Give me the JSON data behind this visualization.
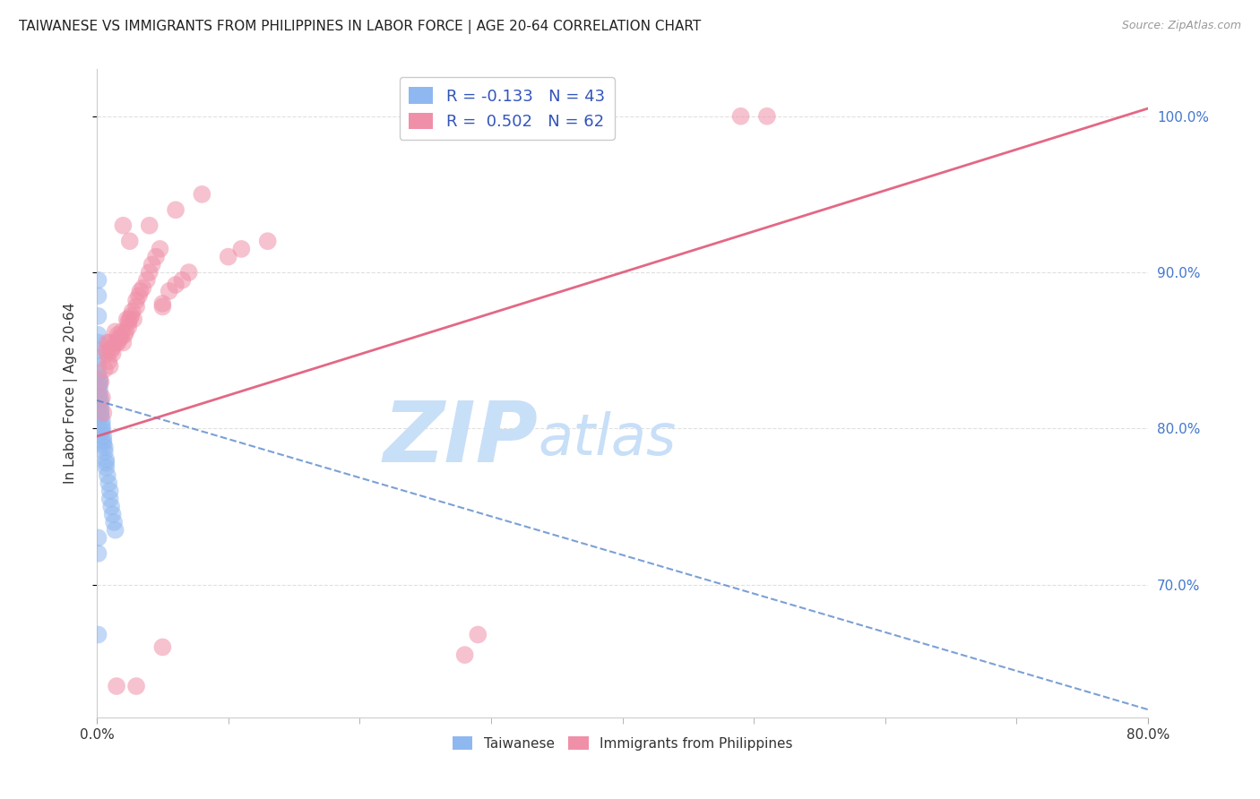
{
  "title": "TAIWANESE VS IMMIGRANTS FROM PHILIPPINES IN LABOR FORCE | AGE 20-64 CORRELATION CHART",
  "source": "Source: ZipAtlas.com",
  "ylabel": "In Labor Force | Age 20-64",
  "ytick_labels": [
    "70.0%",
    "80.0%",
    "90.0%",
    "100.0%"
  ],
  "ytick_values": [
    0.7,
    0.8,
    0.9,
    1.0
  ],
  "xlim": [
    0.0,
    0.8
  ],
  "ylim": [
    0.615,
    1.03
  ],
  "legend_label_blue": "R = -0.133   N = 43",
  "legend_label_pink": "R =  0.502   N = 62",
  "blue_color": "#90b8f0",
  "pink_color": "#f090a8",
  "blue_line_color": "#5080c8",
  "pink_line_color": "#e05878",
  "watermark_zip": "ZIP",
  "watermark_atlas": "atlas",
  "watermark_color_zip": "#c8dff8",
  "watermark_color_atlas": "#c8dff8",
  "background_color": "#ffffff",
  "grid_color": "#e0e0e0",
  "taiwanese_x": [
    0.001,
    0.001,
    0.001,
    0.001,
    0.001,
    0.001,
    0.001,
    0.001,
    0.001,
    0.002,
    0.002,
    0.002,
    0.002,
    0.002,
    0.002,
    0.003,
    0.003,
    0.003,
    0.003,
    0.003,
    0.004,
    0.004,
    0.004,
    0.004,
    0.005,
    0.005,
    0.005,
    0.006,
    0.006,
    0.007,
    0.007,
    0.007,
    0.008,
    0.009,
    0.01,
    0.01,
    0.011,
    0.012,
    0.013,
    0.014,
    0.001,
    0.001,
    0.001
  ],
  "taiwanese_y": [
    0.895,
    0.885,
    0.872,
    0.86,
    0.855,
    0.85,
    0.845,
    0.84,
    0.835,
    0.832,
    0.83,
    0.828,
    0.825,
    0.822,
    0.82,
    0.818,
    0.815,
    0.812,
    0.81,
    0.808,
    0.805,
    0.802,
    0.8,
    0.798,
    0.795,
    0.792,
    0.79,
    0.788,
    0.785,
    0.78,
    0.778,
    0.775,
    0.77,
    0.765,
    0.76,
    0.755,
    0.75,
    0.745,
    0.74,
    0.735,
    0.73,
    0.72,
    0.668
  ],
  "philippines_x": [
    0.003,
    0.004,
    0.005,
    0.006,
    0.007,
    0.008,
    0.008,
    0.009,
    0.01,
    0.01,
    0.011,
    0.012,
    0.012,
    0.013,
    0.014,
    0.015,
    0.016,
    0.016,
    0.017,
    0.018,
    0.019,
    0.02,
    0.021,
    0.022,
    0.023,
    0.024,
    0.024,
    0.025,
    0.026,
    0.027,
    0.028,
    0.03,
    0.03,
    0.032,
    0.033,
    0.035,
    0.038,
    0.04,
    0.042,
    0.045,
    0.048,
    0.05,
    0.05,
    0.055,
    0.06,
    0.065,
    0.07,
    0.1,
    0.11,
    0.13,
    0.015,
    0.03,
    0.05,
    0.28,
    0.29,
    0.49,
    0.51,
    0.02,
    0.025,
    0.04,
    0.06,
    0.08
  ],
  "philippines_y": [
    0.83,
    0.82,
    0.81,
    0.838,
    0.85,
    0.855,
    0.848,
    0.843,
    0.84,
    0.855,
    0.85,
    0.852,
    0.848,
    0.855,
    0.862,
    0.855,
    0.86,
    0.855,
    0.858,
    0.858,
    0.862,
    0.855,
    0.86,
    0.862,
    0.87,
    0.868,
    0.865,
    0.87,
    0.872,
    0.875,
    0.87,
    0.878,
    0.882,
    0.885,
    0.888,
    0.89,
    0.895,
    0.9,
    0.905,
    0.91,
    0.915,
    0.88,
    0.878,
    0.888,
    0.892,
    0.895,
    0.9,
    0.91,
    0.915,
    0.92,
    0.635,
    0.635,
    0.66,
    0.655,
    0.668,
    1.0,
    1.0,
    0.93,
    0.92,
    0.93,
    0.94,
    0.95
  ],
  "ph_regline_x0": 0.0,
  "ph_regline_y0": 0.795,
  "ph_regline_x1": 0.8,
  "ph_regline_y1": 1.005,
  "tw_regline_x0": 0.0,
  "tw_regline_y0": 0.818,
  "tw_regline_x1": 0.8,
  "tw_regline_y1": 0.62
}
